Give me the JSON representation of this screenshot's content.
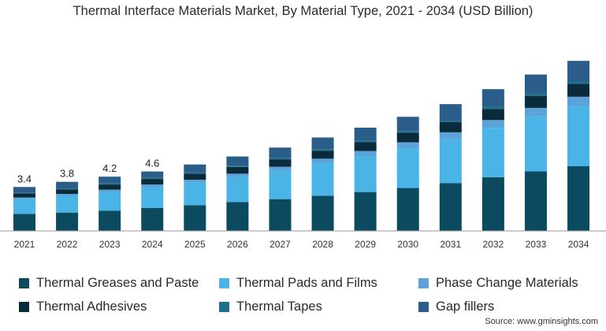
{
  "chart_data": {
    "type": "bar",
    "stacked": true,
    "title": "Thermal Interface Materials Market, By Material Type, 2021 - 2034 (USD Billion)",
    "xlabel": "",
    "ylabel": "",
    "grid": false,
    "legend_position": "bottom",
    "categories": [
      "2021",
      "2022",
      "2023",
      "2024",
      "2025",
      "2026",
      "2027",
      "2028",
      "2029",
      "2030",
      "2031",
      "2032",
      "2033",
      "2034"
    ],
    "total_labels": [
      "3.4",
      "3.8",
      "4.2",
      "4.6",
      "",
      "",
      "",
      "",
      "",
      "",
      "",
      "",
      "",
      ""
    ],
    "series": [
      {
        "name": "Thermal Greases and Paste",
        "color": "#0c4a5f",
        "values": [
          1.31,
          1.42,
          1.57,
          1.77,
          1.98,
          2.23,
          2.46,
          2.72,
          3.01,
          3.32,
          3.69,
          4.15,
          4.61,
          5.02
        ]
      },
      {
        "name": "Thermal Pads and Films",
        "color": "#4ab4e6",
        "values": [
          1.15,
          1.29,
          1.45,
          1.62,
          1.76,
          1.95,
          2.21,
          2.52,
          2.78,
          3.08,
          3.42,
          3.83,
          4.25,
          4.61
        ]
      },
      {
        "name": "Phase Change Materials",
        "color": "#5ba3d9",
        "values": [
          0.13,
          0.15,
          0.17,
          0.2,
          0.22,
          0.25,
          0.3,
          0.35,
          0.4,
          0.46,
          0.52,
          0.6,
          0.66,
          0.75
        ]
      },
      {
        "name": "Thermal Adhesives",
        "color": "#0a2b3b",
        "values": [
          0.32,
          0.36,
          0.4,
          0.43,
          0.47,
          0.52,
          0.57,
          0.62,
          0.67,
          0.73,
          0.79,
          0.86,
          0.93,
          1.0
        ]
      },
      {
        "name": "Thermal Tapes",
        "color": "#1f6e8c",
        "values": [
          0.06,
          0.07,
          0.08,
          0.08,
          0.09,
          0.1,
          0.11,
          0.12,
          0.13,
          0.14,
          0.15,
          0.16,
          0.17,
          0.18
        ]
      },
      {
        "name": "Gap fillers",
        "color": "#2a5d8a",
        "values": [
          0.43,
          0.51,
          0.53,
          0.5,
          0.62,
          0.71,
          0.8,
          0.9,
          1.0,
          1.1,
          1.24,
          1.37,
          1.48,
          1.6
        ]
      }
    ],
    "ylim": [
      0,
      13.6
    ]
  },
  "source": "Source: www.gminsights.com"
}
